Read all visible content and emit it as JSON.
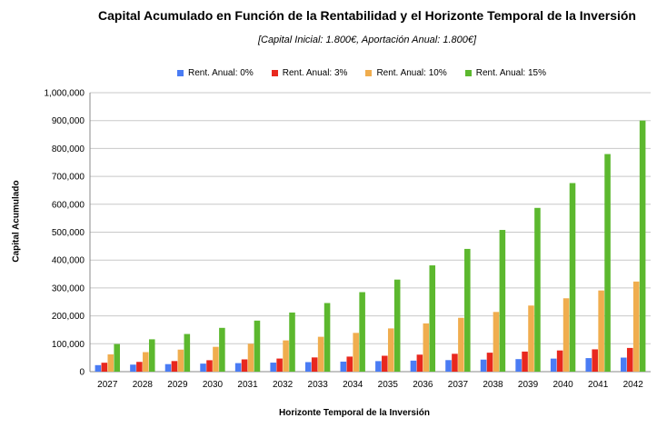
{
  "chart_data": {
    "type": "bar",
    "title": "Capital Acumulado en Función de la Rentabilidad y el Horizonte Temporal de la Inversión",
    "subtitle": "[Capital Inicial: 1.800€, Aportación Anual: 1.800€]",
    "xlabel": "Horizonte Temporal de la Inversión",
    "ylabel": "Capital Acumulado",
    "ylim": [
      0,
      1000000
    ],
    "yticks": [
      0,
      100000,
      200000,
      300000,
      400000,
      500000,
      600000,
      700000,
      800000,
      900000,
      1000000
    ],
    "ytick_labels": [
      "0",
      "100,000",
      "200,000",
      "300,000",
      "400,000",
      "500,000",
      "600,000",
      "700,000",
      "800,000",
      "900,000",
      "1,000,000"
    ],
    "grid": true,
    "legend_position": "top",
    "categories": [
      "2027",
      "2028",
      "2029",
      "2030",
      "2031",
      "2032",
      "2033",
      "2034",
      "2035",
      "2036",
      "2037",
      "2038",
      "2039",
      "2040",
      "2041",
      "2042"
    ],
    "series": [
      {
        "name": "Rent. Anual: 0%",
        "color": "#4a7cf4",
        "values": [
          23400,
          25200,
          27000,
          28800,
          30600,
          32400,
          34200,
          36000,
          37800,
          39600,
          41400,
          43200,
          45000,
          46800,
          48600,
          50400
        ]
      },
      {
        "name": "Rent. Anual: 3%",
        "color": "#e8281e",
        "values": [
          32000,
          35000,
          38000,
          41000,
          44000,
          47000,
          51000,
          54000,
          57000,
          61000,
          64000,
          68000,
          72000,
          76000,
          80000,
          85000
        ]
      },
      {
        "name": "Rent. Anual: 10%",
        "color": "#f0ad4e",
        "values": [
          62000,
          70000,
          79000,
          89000,
          100000,
          112000,
          125000,
          139000,
          155000,
          173000,
          193000,
          214000,
          237000,
          263000,
          291000,
          323000
        ]
      },
      {
        "name": "Rent. Anual: 15%",
        "color": "#5cb82e",
        "values": [
          99000,
          116000,
          135000,
          157000,
          183000,
          212000,
          246000,
          285000,
          330000,
          381000,
          440000,
          508000,
          587000,
          676000,
          780000,
          900000
        ]
      }
    ]
  }
}
